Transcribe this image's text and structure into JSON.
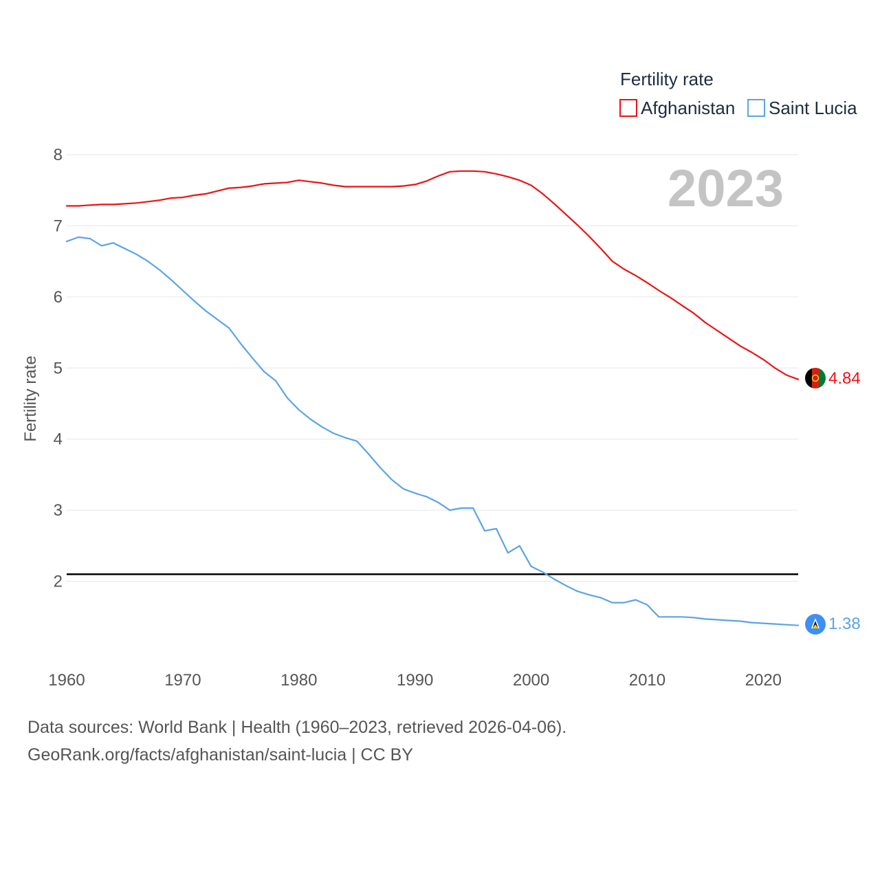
{
  "chart_data": {
    "type": "line",
    "legend_title": "Fertility rate",
    "year_label": "2023",
    "ylabel": "Fertility rate",
    "xlim": [
      1960,
      2023
    ],
    "ylim": [
      1.0,
      8.0
    ],
    "y_ticks": [
      "2",
      "3",
      "4",
      "5",
      "6",
      "7",
      "8"
    ],
    "x_ticks": [
      "1960",
      "1970",
      "1980",
      "1990",
      "2000",
      "2010",
      "2020"
    ],
    "reference_line": {
      "y": 2.1,
      "color": "#000000"
    },
    "series": [
      {
        "name": "Afghanistan",
        "color": "#ee1111",
        "end_label": "4.84",
        "flag_icon": "afghanistan-flag-icon",
        "x": [
          1960,
          1961,
          1962,
          1963,
          1964,
          1965,
          1966,
          1967,
          1968,
          1969,
          1970,
          1971,
          1972,
          1973,
          1974,
          1975,
          1976,
          1977,
          1978,
          1979,
          1980,
          1981,
          1982,
          1983,
          1984,
          1985,
          1986,
          1987,
          1988,
          1989,
          1990,
          1991,
          1992,
          1993,
          1994,
          1995,
          1996,
          1997,
          1998,
          1999,
          2000,
          2001,
          2002,
          2003,
          2004,
          2005,
          2006,
          2007,
          2008,
          2009,
          2010,
          2011,
          2012,
          2013,
          2014,
          2015,
          2016,
          2017,
          2018,
          2019,
          2020,
          2021,
          2022,
          2023
        ],
        "values": [
          7.28,
          7.28,
          7.29,
          7.3,
          7.3,
          7.31,
          7.32,
          7.34,
          7.36,
          7.39,
          7.4,
          7.43,
          7.45,
          7.49,
          7.53,
          7.54,
          7.56,
          7.59,
          7.6,
          7.61,
          7.64,
          7.62,
          7.6,
          7.57,
          7.55,
          7.55,
          7.55,
          7.55,
          7.55,
          7.56,
          7.58,
          7.63,
          7.7,
          7.76,
          7.77,
          7.77,
          7.76,
          7.73,
          7.69,
          7.64,
          7.57,
          7.45,
          7.31,
          7.16,
          7.01,
          6.85,
          6.68,
          6.5,
          6.39,
          6.3,
          6.2,
          6.09,
          5.99,
          5.88,
          5.77,
          5.64,
          5.53,
          5.42,
          5.31,
          5.22,
          5.12,
          5.0,
          4.9,
          4.84
        ]
      },
      {
        "name": "Saint Lucia",
        "color": "#5aa3e8",
        "end_label": "1.38",
        "flag_icon": "saint-lucia-flag-icon",
        "x": [
          1960,
          1961,
          1962,
          1963,
          1964,
          1965,
          1966,
          1967,
          1968,
          1969,
          1970,
          1971,
          1972,
          1973,
          1974,
          1975,
          1976,
          1977,
          1978,
          1979,
          1980,
          1981,
          1982,
          1983,
          1984,
          1985,
          1986,
          1987,
          1988,
          1989,
          1990,
          1991,
          1992,
          1993,
          1994,
          1995,
          1996,
          1997,
          1998,
          1999,
          2000,
          2001,
          2002,
          2003,
          2004,
          2005,
          2006,
          2007,
          2008,
          2009,
          2010,
          2011,
          2012,
          2013,
          2014,
          2015,
          2016,
          2017,
          2018,
          2019,
          2020,
          2021,
          2022,
          2023
        ],
        "values": [
          6.78,
          6.84,
          6.82,
          6.72,
          6.76,
          6.68,
          6.6,
          6.5,
          6.38,
          6.24,
          6.09,
          5.94,
          5.8,
          5.68,
          5.56,
          5.34,
          5.14,
          4.95,
          4.82,
          4.58,
          4.41,
          4.28,
          4.17,
          4.08,
          4.02,
          3.97,
          3.79,
          3.6,
          3.43,
          3.3,
          3.24,
          3.19,
          3.11,
          3.0,
          3.03,
          3.03,
          2.71,
          2.74,
          2.4,
          2.5,
          2.21,
          2.13,
          2.03,
          1.94,
          1.86,
          1.81,
          1.77,
          1.7,
          1.7,
          1.74,
          1.67,
          1.5,
          1.5,
          1.5,
          1.49,
          1.47,
          1.46,
          1.45,
          1.44,
          1.42,
          1.41,
          1.4,
          1.39,
          1.38
        ]
      }
    ]
  },
  "footer": {
    "source_line": "Data sources: World Bank | Health (1960–2023, retrieved 2026-04-06).",
    "url_line": "GeoRank.org/facts/afghanistan/saint-lucia | CC BY"
  }
}
